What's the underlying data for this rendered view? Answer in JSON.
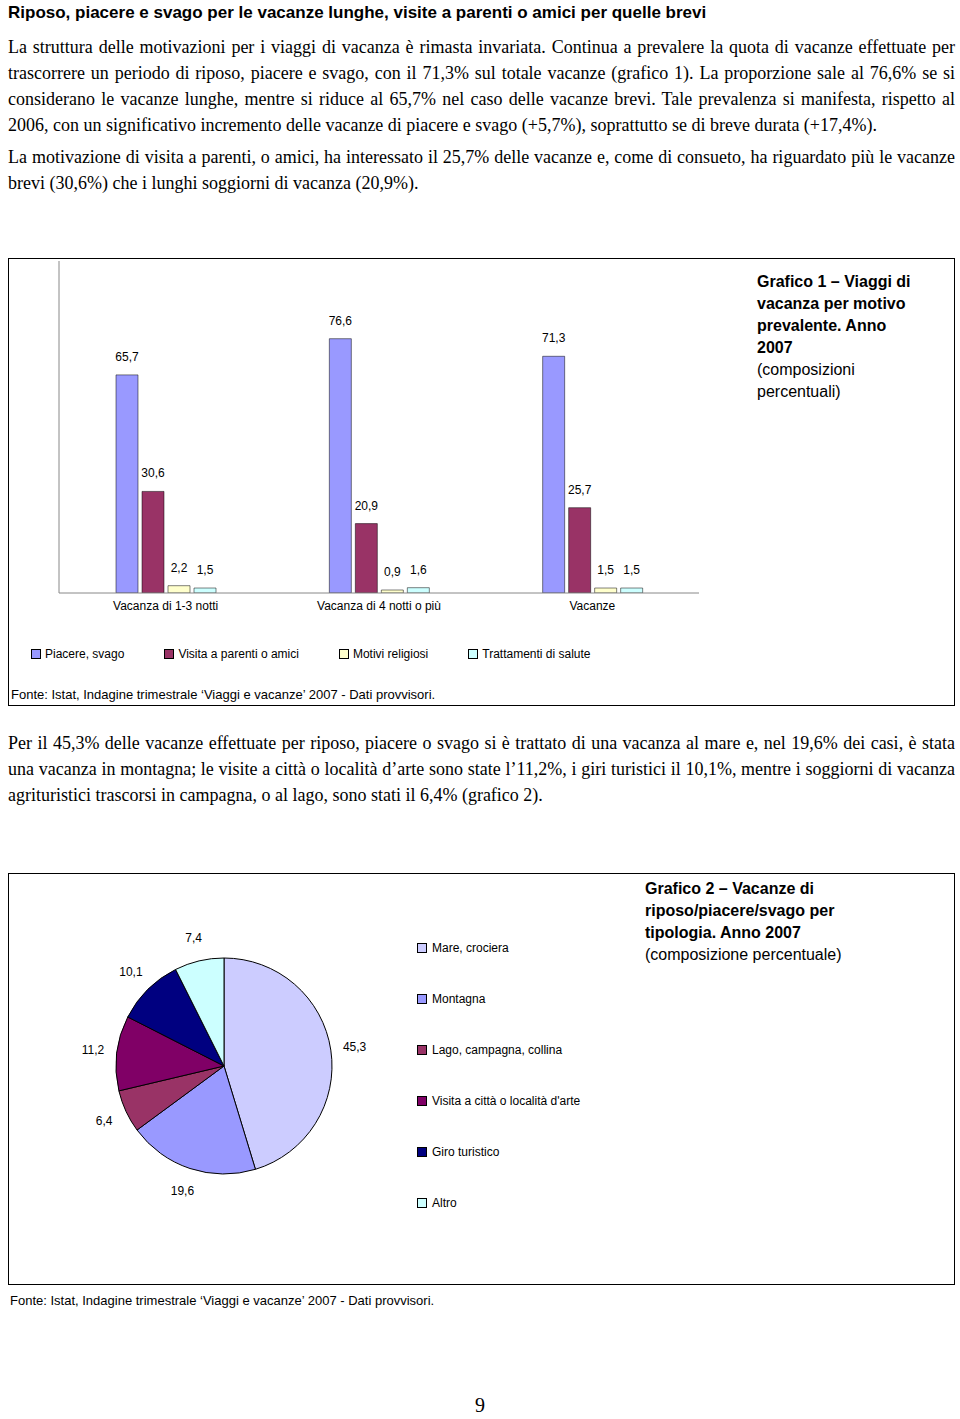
{
  "heading": "Riposo, piacere e svago per le vacanze lunghe, visite a parenti o amici per quelle brevi",
  "paragraphs_before": [
    "La struttura delle motivazioni per i viaggi di vacanza è rimasta invariata. Continua a prevalere la quota di vacanze effettuate per trascorrere un periodo di riposo, piacere e svago, con il 71,3% sul totale vacanze (grafico 1). La proporzione sale al 76,6% se si considerano le vacanze lunghe, mentre si riduce al 65,7% nel caso delle vacanze brevi. Tale prevalenza si manifesta, rispetto al 2006, con un significativo incremento delle vacanze di piacere e svago (+5,7%), soprattutto se di breve durata (+17,4%).",
    "La motivazione di visita a parenti, o amici, ha interessato il 25,7% delle vacanze e, come di consueto, ha riguardato più le vacanze brevi (30,6%) che i lunghi soggiorni di vacanza (20,9%)."
  ],
  "chart_data": [
    {
      "type": "bar",
      "title": "Grafico 1 – Viaggi di vacanza per motivo prevalente. Anno 2007",
      "subtitle": "(composizioni percentuali)",
      "categories": [
        "Vacanza di 1-3 notti",
        "Vacanza di 4 notti o più",
        "Vacanze"
      ],
      "series": [
        {
          "name": "Piacere, svago",
          "color": "#9999ff",
          "values": [
            65.7,
            76.6,
            71.3
          ],
          "value_labels": [
            "65,7",
            "76,6",
            "71,3"
          ]
        },
        {
          "name": "Visita a parenti o amici",
          "color": "#993366",
          "values": [
            30.6,
            20.9,
            25.7
          ],
          "value_labels": [
            "30,6",
            "20,9",
            "25,7"
          ]
        },
        {
          "name": "Motivi religiosi",
          "color": "#ffffcc",
          "values": [
            2.2,
            0.9,
            1.5
          ],
          "value_labels": [
            "2,2",
            "0,9",
            "1,5"
          ]
        },
        {
          "name": "Trattamenti di salute",
          "color": "#ccffff",
          "values": [
            1.5,
            1.6,
            1.5
          ],
          "value_labels": [
            "1,5",
            "1,6",
            "1,5"
          ]
        }
      ],
      "ylim": [
        0,
        100
      ],
      "tick_labels": "x",
      "data_labels": true,
      "legend": "bottom",
      "source": "Fonte: Istat, Indagine trimestrale ‘Viaggi e vacanze’ 2007 - Dati provvisori."
    },
    {
      "type": "pie",
      "title": "Grafico 2 – Vacanze di riposo/piacere/svago per tipologia. Anno 2007",
      "subtitle": "(composizione percentuale)",
      "categories": [
        "Mare, crociera",
        "Montagna",
        "Lago, campagna, collina",
        "Visita a città o località d'arte",
        "Giro turistico",
        "Altro"
      ],
      "values": [
        45.3,
        19.6,
        6.4,
        11.2,
        10.1,
        7.4
      ],
      "value_labels": [
        "45,3",
        "19,6",
        "6,4",
        "11,2",
        "10,1",
        "7,4"
      ],
      "colors": [
        "#ccccff",
        "#9999ff",
        "#993366",
        "#800066",
        "#000080",
        "#ccffff"
      ],
      "data_labels": true,
      "legend": "right",
      "source": "Fonte: Istat, Indagine trimestrale ‘Viaggi e vacanze’ 2007 - Dati provvisori."
    }
  ],
  "paragraphs_between": [
    "Per il 45,3% delle vacanze effettuate per riposo, piacere o svago si è trattato di una vacanza al mare e, nel 19,6% dei casi, è stata una vacanza in montagna; le visite a città o località d’arte sono state l’11,2%, i giri turistici il 10,1%, mentre i soggiorni di vacanza agrituristici trascorsi in campagna, o al lago, sono stati il 6,4% (grafico 2)."
  ],
  "page_number": "9"
}
